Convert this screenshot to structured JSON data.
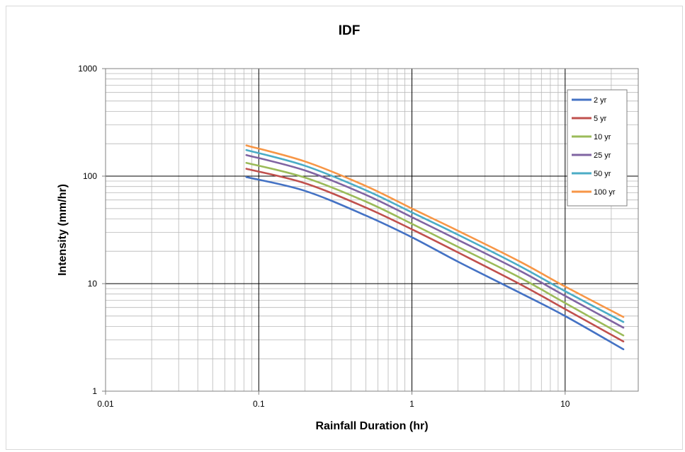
{
  "chart_data": {
    "type": "line",
    "title": "IDF",
    "xlabel": "Rainfall Duration (hr)",
    "ylabel": "Intensity (mm/hr)",
    "xscale": "log",
    "yscale": "log",
    "xlim": [
      0.01,
      30
    ],
    "ylim": [
      1,
      1000
    ],
    "xticks": [
      0.01,
      0.1,
      1,
      10
    ],
    "xtick_labels": [
      "0.01",
      "0.1",
      "1",
      "10"
    ],
    "yticks": [
      1,
      10,
      100,
      1000
    ],
    "ytick_labels": [
      "1",
      "10",
      "100",
      "1000"
    ],
    "grid": true,
    "legend_position": "top-right",
    "x": [
      0.083,
      0.2,
      0.5,
      1,
      2,
      5,
      10,
      24
    ],
    "series": [
      {
        "name": "2 yr",
        "color": "#4472c4",
        "values": [
          98,
          73,
          43,
          27,
          16,
          8.3,
          5.0,
          2.45
        ]
      },
      {
        "name": "5 yr",
        "color": "#c0504d",
        "values": [
          117,
          86,
          51,
          32,
          19.5,
          10,
          5.8,
          2.9
        ]
      },
      {
        "name": "10 yr",
        "color": "#9bbb59",
        "values": [
          133,
          97,
          58,
          36,
          22,
          11.5,
          6.6,
          3.3
        ]
      },
      {
        "name": "25 yr",
        "color": "#8064a2",
        "values": [
          157,
          113,
          67,
          41.5,
          25.5,
          13.3,
          7.7,
          3.9
        ]
      },
      {
        "name": "50 yr",
        "color": "#4bacc6",
        "values": [
          175,
          125,
          74,
          46,
          28.5,
          14.7,
          8.5,
          4.4
        ]
      },
      {
        "name": "100 yr",
        "color": "#f79646",
        "values": [
          193,
          137,
          81,
          50,
          31,
          16.2,
          9.4,
          4.9
        ]
      }
    ]
  }
}
